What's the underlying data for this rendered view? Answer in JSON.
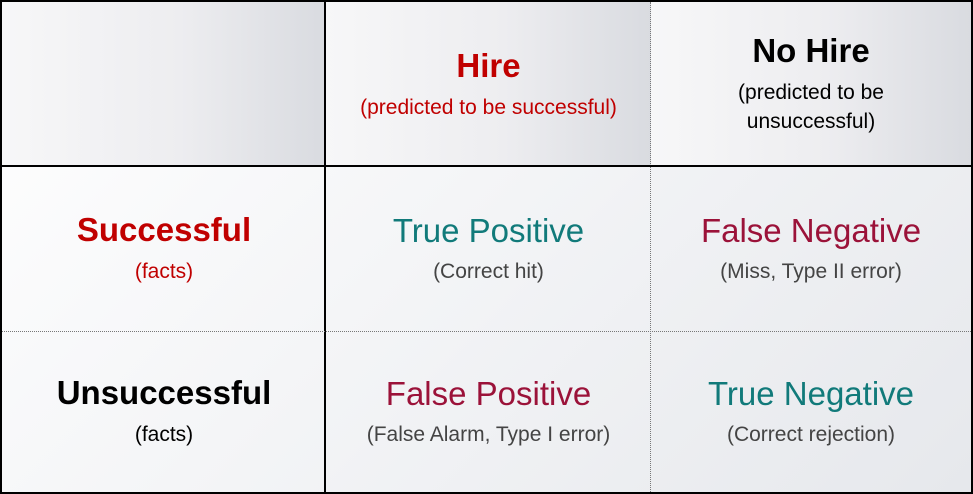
{
  "columns": [
    {
      "title": "Hire",
      "subtitle": "(predicted to be successful)",
      "color": "#c00000"
    },
    {
      "title": "No Hire",
      "subtitle": "(predicted to be unsuccessful)",
      "color": "#000000"
    }
  ],
  "rows": [
    {
      "title": "Successful",
      "subtitle": "(facts)",
      "color": "#c00000"
    },
    {
      "title": "Unsuccessful",
      "subtitle": "(facts)",
      "color": "#000000"
    }
  ],
  "cells": {
    "true_positive": {
      "title": "True Positive",
      "subtitle": "(Correct hit)",
      "color": "#117a7a"
    },
    "false_negative": {
      "title": "False Negative",
      "subtitle": "(Miss, Type II error)",
      "color": "#9b1239"
    },
    "false_positive": {
      "title": "False Positive",
      "subtitle": "(False Alarm, Type I error)",
      "color": "#9b1239"
    },
    "true_negative": {
      "title": "True Negative",
      "subtitle": "(Correct rejection)",
      "color": "#117a7a"
    }
  }
}
